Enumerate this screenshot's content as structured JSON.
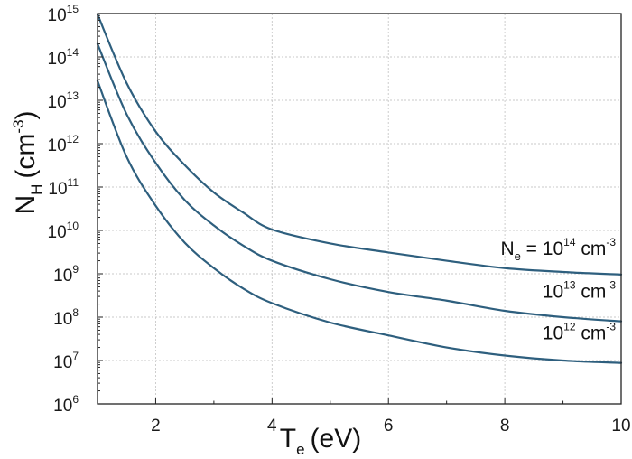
{
  "chart_data": {
    "type": "line",
    "x_axis": {
      "label_main": "T",
      "label_sub": "e",
      "label_unit": "(eV)",
      "lim": [
        1,
        10
      ],
      "ticks": [
        2,
        4,
        6,
        8,
        10
      ],
      "minor_ticks": [
        1,
        3,
        5,
        7,
        9
      ],
      "tick_labels": [
        "2",
        "4",
        "6",
        "8",
        "10"
      ]
    },
    "y_axis": {
      "label_main": "N",
      "label_sub": "H",
      "label_unit_pre": "(cm",
      "label_unit_sup": "-3",
      "label_unit_post": ")",
      "scale": "log",
      "lim": [
        1000000.0,
        1000000000000000.0
      ],
      "tick_base": "10",
      "tick_exponents": [
        "6",
        "7",
        "8",
        "9",
        "10",
        "11",
        "12",
        "13",
        "14",
        "15"
      ]
    },
    "grid": true,
    "series": [
      {
        "label_pre": "N",
        "label_sub": "e",
        "label_mid": " = 10",
        "label_sup": "14",
        "label_unit": " cm",
        "label_unit_sup": "-3",
        "x": [
          1,
          1.5,
          2,
          2.5,
          3,
          3.5,
          4,
          5,
          6,
          7,
          8,
          9,
          10
        ],
        "y": [
          960000000000000.0,
          25000000000000.0,
          1900000000000.0,
          320000000000.0,
          75000000000.0,
          26000000000.0,
          10500000000.0,
          5000000000.0,
          3100000000.0,
          2000000000.0,
          1350000000.0,
          1100000000.0,
          960000000.0
        ]
      },
      {
        "label_pre": "",
        "label_sub": "",
        "label_mid": "10",
        "label_sup": "13",
        "label_unit": " cm",
        "label_unit_sup": "-3",
        "x": [
          1,
          1.5,
          2,
          2.5,
          3,
          3.5,
          4,
          5,
          6,
          7,
          8,
          9,
          10
        ],
        "y": [
          200000000000000.0,
          4800000000000.0,
          360000000000.0,
          50000000000.0,
          13000000000.0,
          4500000000.0,
          2000000000.0,
          750000000.0,
          380000000.0,
          240000000.0,
          140000000.0,
          100000000.0,
          80000000.0
        ]
      },
      {
        "label_pre": "",
        "label_sub": "",
        "label_mid": "10",
        "label_sup": "12",
        "label_unit": " cm",
        "label_unit_sup": "-3",
        "x": [
          1,
          1.5,
          2,
          2.5,
          3,
          3.5,
          4,
          5,
          6,
          7,
          8,
          9,
          10
        ],
        "y": [
          28000000000000.0,
          500000000000.0,
          37000000000.0,
          5200000000.0,
          1350000000.0,
          460000000.0,
          210000000.0,
          75000000.0,
          38000000.0,
          20000000.0,
          13000000.0,
          10000000.0,
          8800000.0
        ]
      }
    ]
  },
  "colors": {
    "curve": "#2e5f7e",
    "grid": "#c8c8c8",
    "frame": "#222222"
  }
}
